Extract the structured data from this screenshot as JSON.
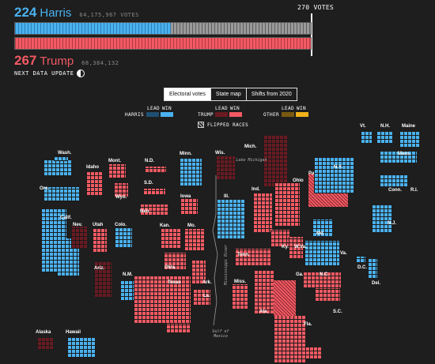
{
  "header": {
    "harris": {
      "electoral": "224",
      "name": "Harris",
      "votes": "64,175,967 VOTES"
    },
    "trump": {
      "electoral": "267",
      "name": "Trump",
      "votes": "68,384,132"
    },
    "threshold": "270 VOTES",
    "next_update": "NEXT DATA UPDATE"
  },
  "bar_progress": {
    "harris": 224,
    "trump": 267,
    "total": 538,
    "to_win": 270
  },
  "tabs": [
    {
      "label": "Electoral votes",
      "active": true
    },
    {
      "label": "State map",
      "active": false
    },
    {
      "label": "Shifts from 2020",
      "active": false
    }
  ],
  "legend": {
    "lead": "LEAD",
    "win": "WIN",
    "harris": "HARRIS",
    "trump": "TRUMP",
    "other": "OTHER",
    "flipped": "FLIPPED RACES"
  },
  "colors": {
    "dem_win": "#4ab2f0",
    "dem_lead": "#1f4f72",
    "rep_win": "#f25a63",
    "rep_lead": "#6b1a22",
    "other_win": "#f2b21a",
    "other_lead": "#7a5a10",
    "uncalled": "#8c8c8c",
    "background": "#1e1e1e"
  },
  "states": [
    {
      "id": "wa",
      "label": "Wash.",
      "status": "dem_win"
    },
    {
      "id": "or",
      "label": "Ore.",
      "status": "dem_win"
    },
    {
      "id": "ca",
      "label": "Calif.",
      "status": "dem_win"
    },
    {
      "id": "id",
      "label": "Idaho",
      "status": "rep_win"
    },
    {
      "id": "nv",
      "label": "Nev.",
      "status": "rep_lead"
    },
    {
      "id": "ut",
      "label": "Utah",
      "status": "rep_win"
    },
    {
      "id": "az",
      "label": "Ariz.",
      "status": "rep_lead"
    },
    {
      "id": "mt",
      "label": "Mont.",
      "status": "rep_win"
    },
    {
      "id": "wy",
      "label": "Wyo.",
      "status": "rep_win"
    },
    {
      "id": "co",
      "label": "Colo.",
      "status": "dem_win"
    },
    {
      "id": "nm",
      "label": "N.M.",
      "status": "dem_win"
    },
    {
      "id": "nd",
      "label": "N.D.",
      "status": "rep_win"
    },
    {
      "id": "sd",
      "label": "S.D.",
      "status": "rep_win"
    },
    {
      "id": "ne",
      "label": "Neb.",
      "status": "rep_win"
    },
    {
      "id": "ks",
      "label": "Kan.",
      "status": "rep_win"
    },
    {
      "id": "ok",
      "label": "Okla.",
      "status": "rep_win"
    },
    {
      "id": "tx",
      "label": "Texas",
      "status": "rep_win"
    },
    {
      "id": "mn",
      "label": "Minn.",
      "status": "dem_win"
    },
    {
      "id": "ia",
      "label": "Iowa",
      "status": "rep_win"
    },
    {
      "id": "mo",
      "label": "Mo.",
      "status": "rep_win"
    },
    {
      "id": "ar",
      "label": "Ark.",
      "status": "rep_win"
    },
    {
      "id": "la",
      "label": "La.",
      "status": "rep_win"
    },
    {
      "id": "wi",
      "label": "Wis.",
      "status": "rep_lead"
    },
    {
      "id": "il",
      "label": "Ill.",
      "status": "dem_win"
    },
    {
      "id": "mi",
      "label": "Mich.",
      "status": "rep_lead"
    },
    {
      "id": "in",
      "label": "Ind.",
      "status": "rep_win"
    },
    {
      "id": "oh",
      "label": "Ohio",
      "status": "rep_win"
    },
    {
      "id": "ky",
      "label": "Ky.",
      "status": "rep_win"
    },
    {
      "id": "tn",
      "label": "Tenn.",
      "status": "rep_win"
    },
    {
      "id": "ms",
      "label": "Miss.",
      "status": "rep_win"
    },
    {
      "id": "al",
      "label": "Ala.",
      "status": "rep_win"
    },
    {
      "id": "ga",
      "label": "Ga.",
      "status": "rep_win"
    },
    {
      "id": "fl",
      "label": "Fla.",
      "status": "rep_win"
    },
    {
      "id": "sc",
      "label": "S.C.",
      "status": "rep_win"
    },
    {
      "id": "nc",
      "label": "N.C.",
      "status": "rep_win"
    },
    {
      "id": "va",
      "label": "Va.",
      "status": "dem_win"
    },
    {
      "id": "wv",
      "label": "W.Va.",
      "status": "rep_win"
    },
    {
      "id": "pa",
      "label": "Pa.",
      "status": "rep_win"
    },
    {
      "id": "ny",
      "label": "N.Y.",
      "status": "dem_win"
    },
    {
      "id": "md",
      "label": "Md.",
      "status": "dem_win"
    },
    {
      "id": "dc",
      "label": "D.C.",
      "status": "dem_win"
    },
    {
      "id": "de",
      "label": "Del.",
      "status": "dem_win"
    },
    {
      "id": "nj",
      "label": "N.J.",
      "status": "dem_win"
    },
    {
      "id": "ct",
      "label": "Conn.",
      "status": "dem_win"
    },
    {
      "id": "ri",
      "label": "R.I.",
      "status": "dem_win"
    },
    {
      "id": "ma",
      "label": "Mass.",
      "status": "dem_win"
    },
    {
      "id": "vt",
      "label": "Vt.",
      "status": "dem_win"
    },
    {
      "id": "nh",
      "label": "N.H.",
      "status": "dem_win"
    },
    {
      "id": "me",
      "label": "Maine",
      "status": "dem_win"
    },
    {
      "id": "ak",
      "label": "Alaska",
      "status": "rep_lead"
    },
    {
      "id": "hi",
      "label": "Hawaii",
      "status": "dem_win"
    }
  ],
  "geo_labels": {
    "lake_michigan": "Lake Michigan",
    "gulf_of_mexico": "Gulf of Mexico",
    "mississippi_river": "Mississippi River"
  }
}
